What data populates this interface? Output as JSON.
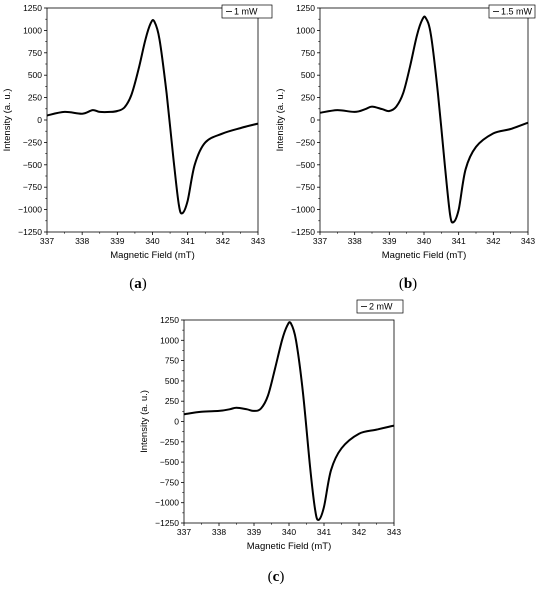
{
  "figure": {
    "panels": [
      {
        "caption_letter": "a",
        "legend": "1 mW"
      },
      {
        "caption_letter": "b",
        "legend": "1.5 mW"
      },
      {
        "caption_letter": "c",
        "legend": "2 mW"
      }
    ]
  },
  "chart_data": [
    {
      "type": "line",
      "panel": "a",
      "xlabel": "Magnetic Field (mT)",
      "ylabel": "Intensity (a. u.)",
      "xlim": [
        337,
        343
      ],
      "ylim": [
        -1250,
        1250
      ],
      "xticks": [
        "337",
        "338",
        "339",
        "340",
        "341",
        "342",
        "343"
      ],
      "yticks": [
        "−1250",
        "−1000",
        "−750",
        "−500",
        "−250",
        "0",
        "250",
        "500",
        "750",
        "1000",
        "1250"
      ],
      "legend_position": "top-right",
      "series": [
        {
          "name": "1 mW",
          "x": [
            337.0,
            337.5,
            338.0,
            338.3,
            338.5,
            338.8,
            339.0,
            339.2,
            339.4,
            339.6,
            339.8,
            339.95,
            340.05,
            340.2,
            340.4,
            340.6,
            340.75,
            340.85,
            341.0,
            341.2,
            341.5,
            342.0,
            342.5,
            343.0
          ],
          "y": [
            50,
            90,
            70,
            110,
            90,
            90,
            100,
            140,
            280,
            560,
            900,
            1080,
            1100,
            900,
            300,
            -450,
            -950,
            -1040,
            -900,
            -500,
            -250,
            -150,
            -90,
            -40
          ]
        }
      ]
    },
    {
      "type": "line",
      "panel": "b",
      "xlabel": "Magnetic Field (mT)",
      "ylabel": "Intensity (a. u.)",
      "xlim": [
        337,
        343
      ],
      "ylim": [
        -1250,
        1250
      ],
      "xticks": [
        "337",
        "338",
        "339",
        "340",
        "341",
        "342",
        "343"
      ],
      "yticks": [
        "−1250",
        "−1000",
        "−750",
        "−500",
        "−250",
        "0",
        "250",
        "500",
        "750",
        "1000",
        "1250"
      ],
      "legend_position": "top-right",
      "series": [
        {
          "name": "1.5 mW",
          "x": [
            337.0,
            337.5,
            338.0,
            338.3,
            338.5,
            338.8,
            339.0,
            339.2,
            339.4,
            339.6,
            339.8,
            339.95,
            340.05,
            340.2,
            340.4,
            340.6,
            340.75,
            340.85,
            341.0,
            341.2,
            341.5,
            342.0,
            342.5,
            343.0
          ],
          "y": [
            80,
            110,
            90,
            120,
            150,
            120,
            100,
            150,
            300,
            600,
            950,
            1120,
            1140,
            950,
            300,
            -500,
            -1050,
            -1140,
            -1000,
            -550,
            -300,
            -150,
            -100,
            -30
          ]
        }
      ]
    },
    {
      "type": "line",
      "panel": "c",
      "xlabel": "Magnetic Field (mT)",
      "ylabel": "Intensity (a. u.)",
      "xlim": [
        337,
        343
      ],
      "ylim": [
        -1250,
        1250
      ],
      "xticks": [
        "337",
        "338",
        "339",
        "340",
        "341",
        "342",
        "343"
      ],
      "yticks": [
        "−1250",
        "−1000",
        "−750",
        "−500",
        "−250",
        "0",
        "250",
        "500",
        "750",
        "1000",
        "1250"
      ],
      "legend_position": "top-right",
      "series": [
        {
          "name": "2 mW",
          "x": [
            337.0,
            337.5,
            338.0,
            338.3,
            338.5,
            338.8,
            339.0,
            339.2,
            339.4,
            339.6,
            339.8,
            339.95,
            340.05,
            340.2,
            340.4,
            340.6,
            340.75,
            340.85,
            341.0,
            341.2,
            341.5,
            342.0,
            342.5,
            343.0
          ],
          "y": [
            90,
            120,
            130,
            150,
            170,
            150,
            130,
            160,
            320,
            650,
            1000,
            1180,
            1210,
            1000,
            350,
            -550,
            -1100,
            -1210,
            -1050,
            -600,
            -330,
            -150,
            -100,
            -50
          ]
        }
      ]
    }
  ]
}
